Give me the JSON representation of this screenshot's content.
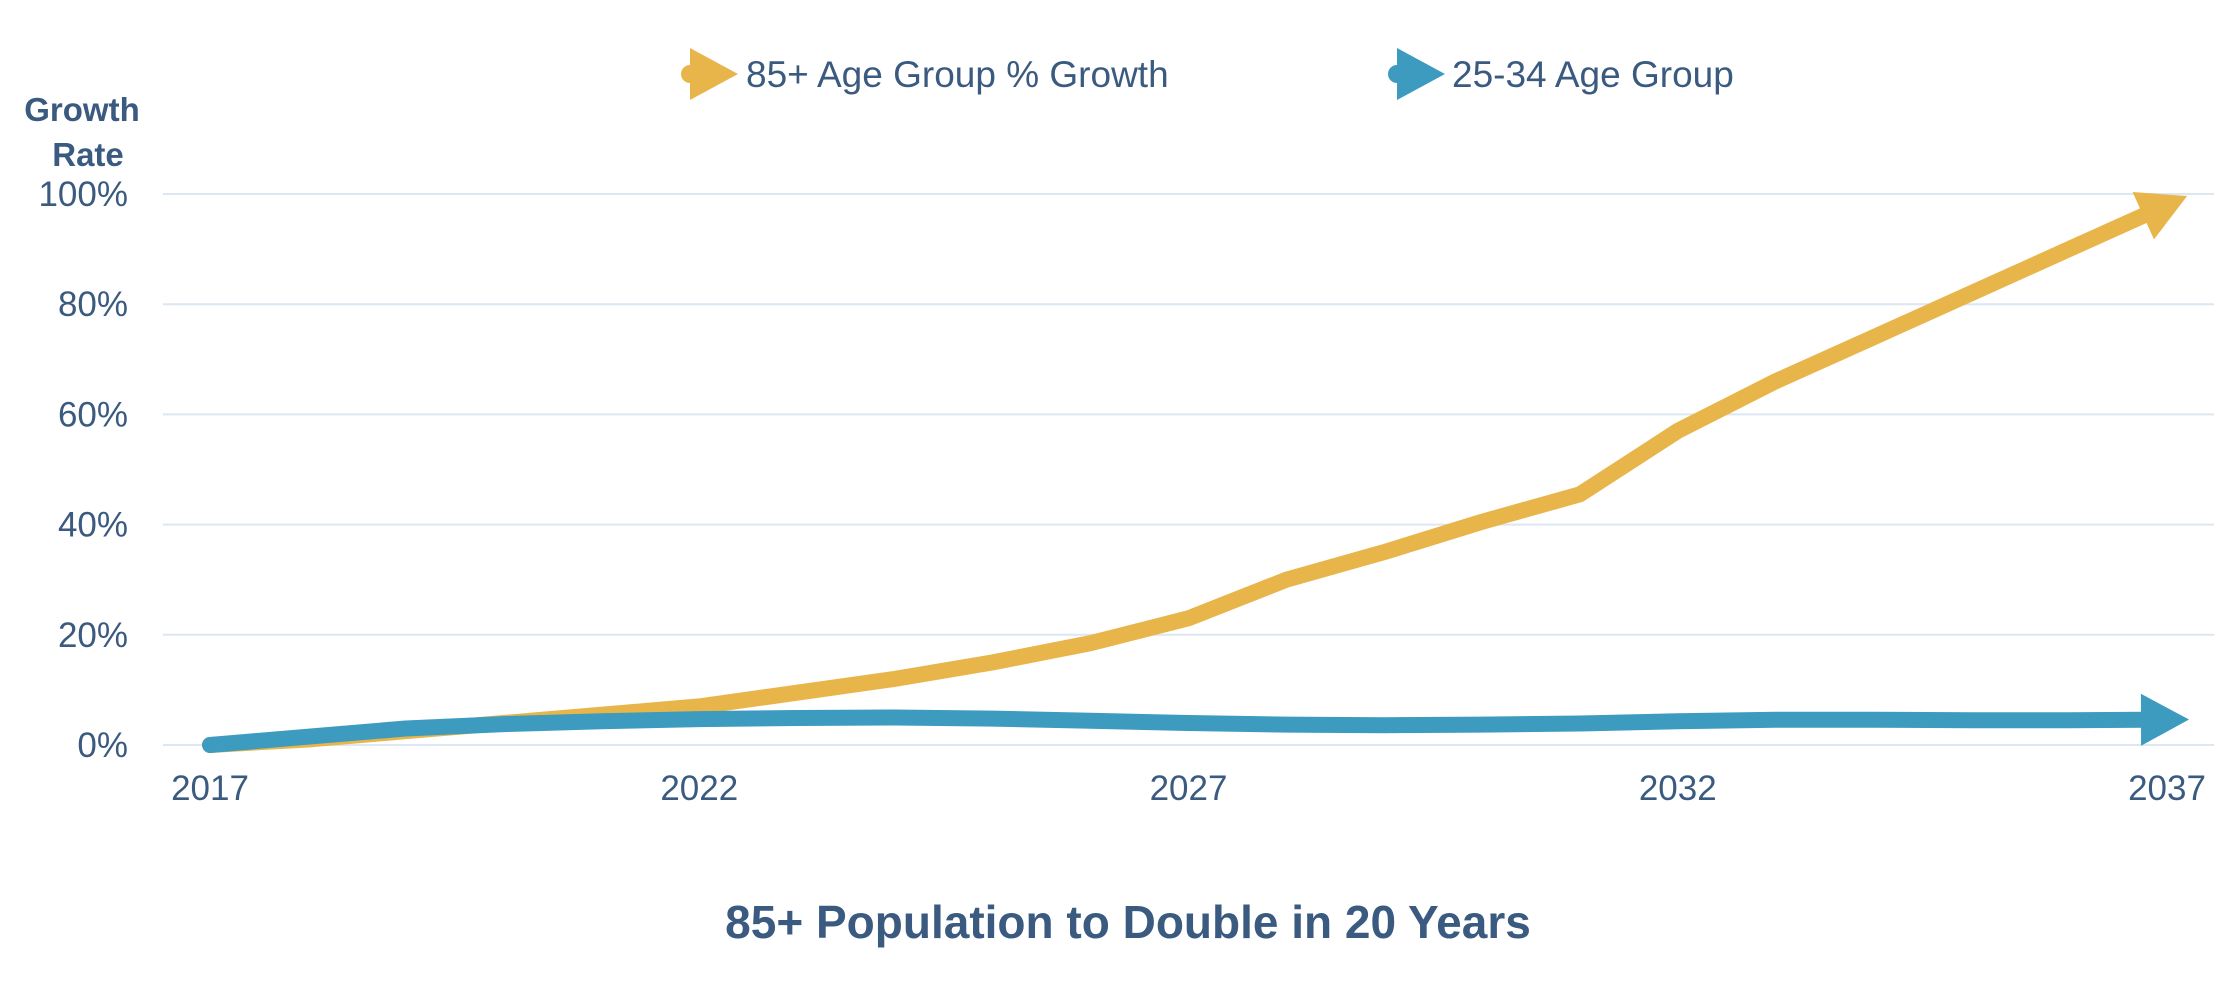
{
  "chart_data": {
    "type": "line",
    "title": "85+ Population to Double in 20 Years",
    "ylabel": "Growth Rate",
    "xlabel": "",
    "x_ticks": [
      "2017",
      "2022",
      "2027",
      "2032",
      "2037"
    ],
    "y_ticks": [
      "0%",
      "20%",
      "40%",
      "60%",
      "80%",
      "100%"
    ],
    "xlim": [
      2017,
      2037
    ],
    "ylim": [
      0,
      100
    ],
    "grid": true,
    "legend_position": "top-center",
    "series": [
      {
        "name": "85+ Age Group % Growth",
        "color": "#e8b54a",
        "marker": "arrow",
        "x": [
          2017,
          2018,
          2019,
          2020,
          2021,
          2022,
          2023,
          2024,
          2025,
          2026,
          2027,
          2028,
          2029,
          2030,
          2031,
          2032,
          2033,
          2034,
          2035,
          2036,
          2037
        ],
        "values": [
          0,
          1,
          2.5,
          4,
          5.5,
          7,
          9.5,
          12,
          15,
          18.5,
          23,
          30,
          35,
          40.5,
          45.5,
          57,
          66,
          74,
          82,
          90,
          98
        ]
      },
      {
        "name": "25-34 Age Group",
        "color": "#3d9bbf",
        "marker": "arrow",
        "x": [
          2017,
          2018,
          2019,
          2020,
          2021,
          2022,
          2023,
          2024,
          2025,
          2026,
          2027,
          2028,
          2029,
          2030,
          2031,
          2032,
          2033,
          2034,
          2035,
          2036,
          2037
        ],
        "values": [
          0,
          1.5,
          3,
          3.8,
          4.3,
          4.7,
          4.9,
          5,
          4.8,
          4.4,
          4,
          3.7,
          3.6,
          3.7,
          3.9,
          4.3,
          4.6,
          4.6,
          4.5,
          4.5,
          4.6
        ]
      }
    ]
  }
}
